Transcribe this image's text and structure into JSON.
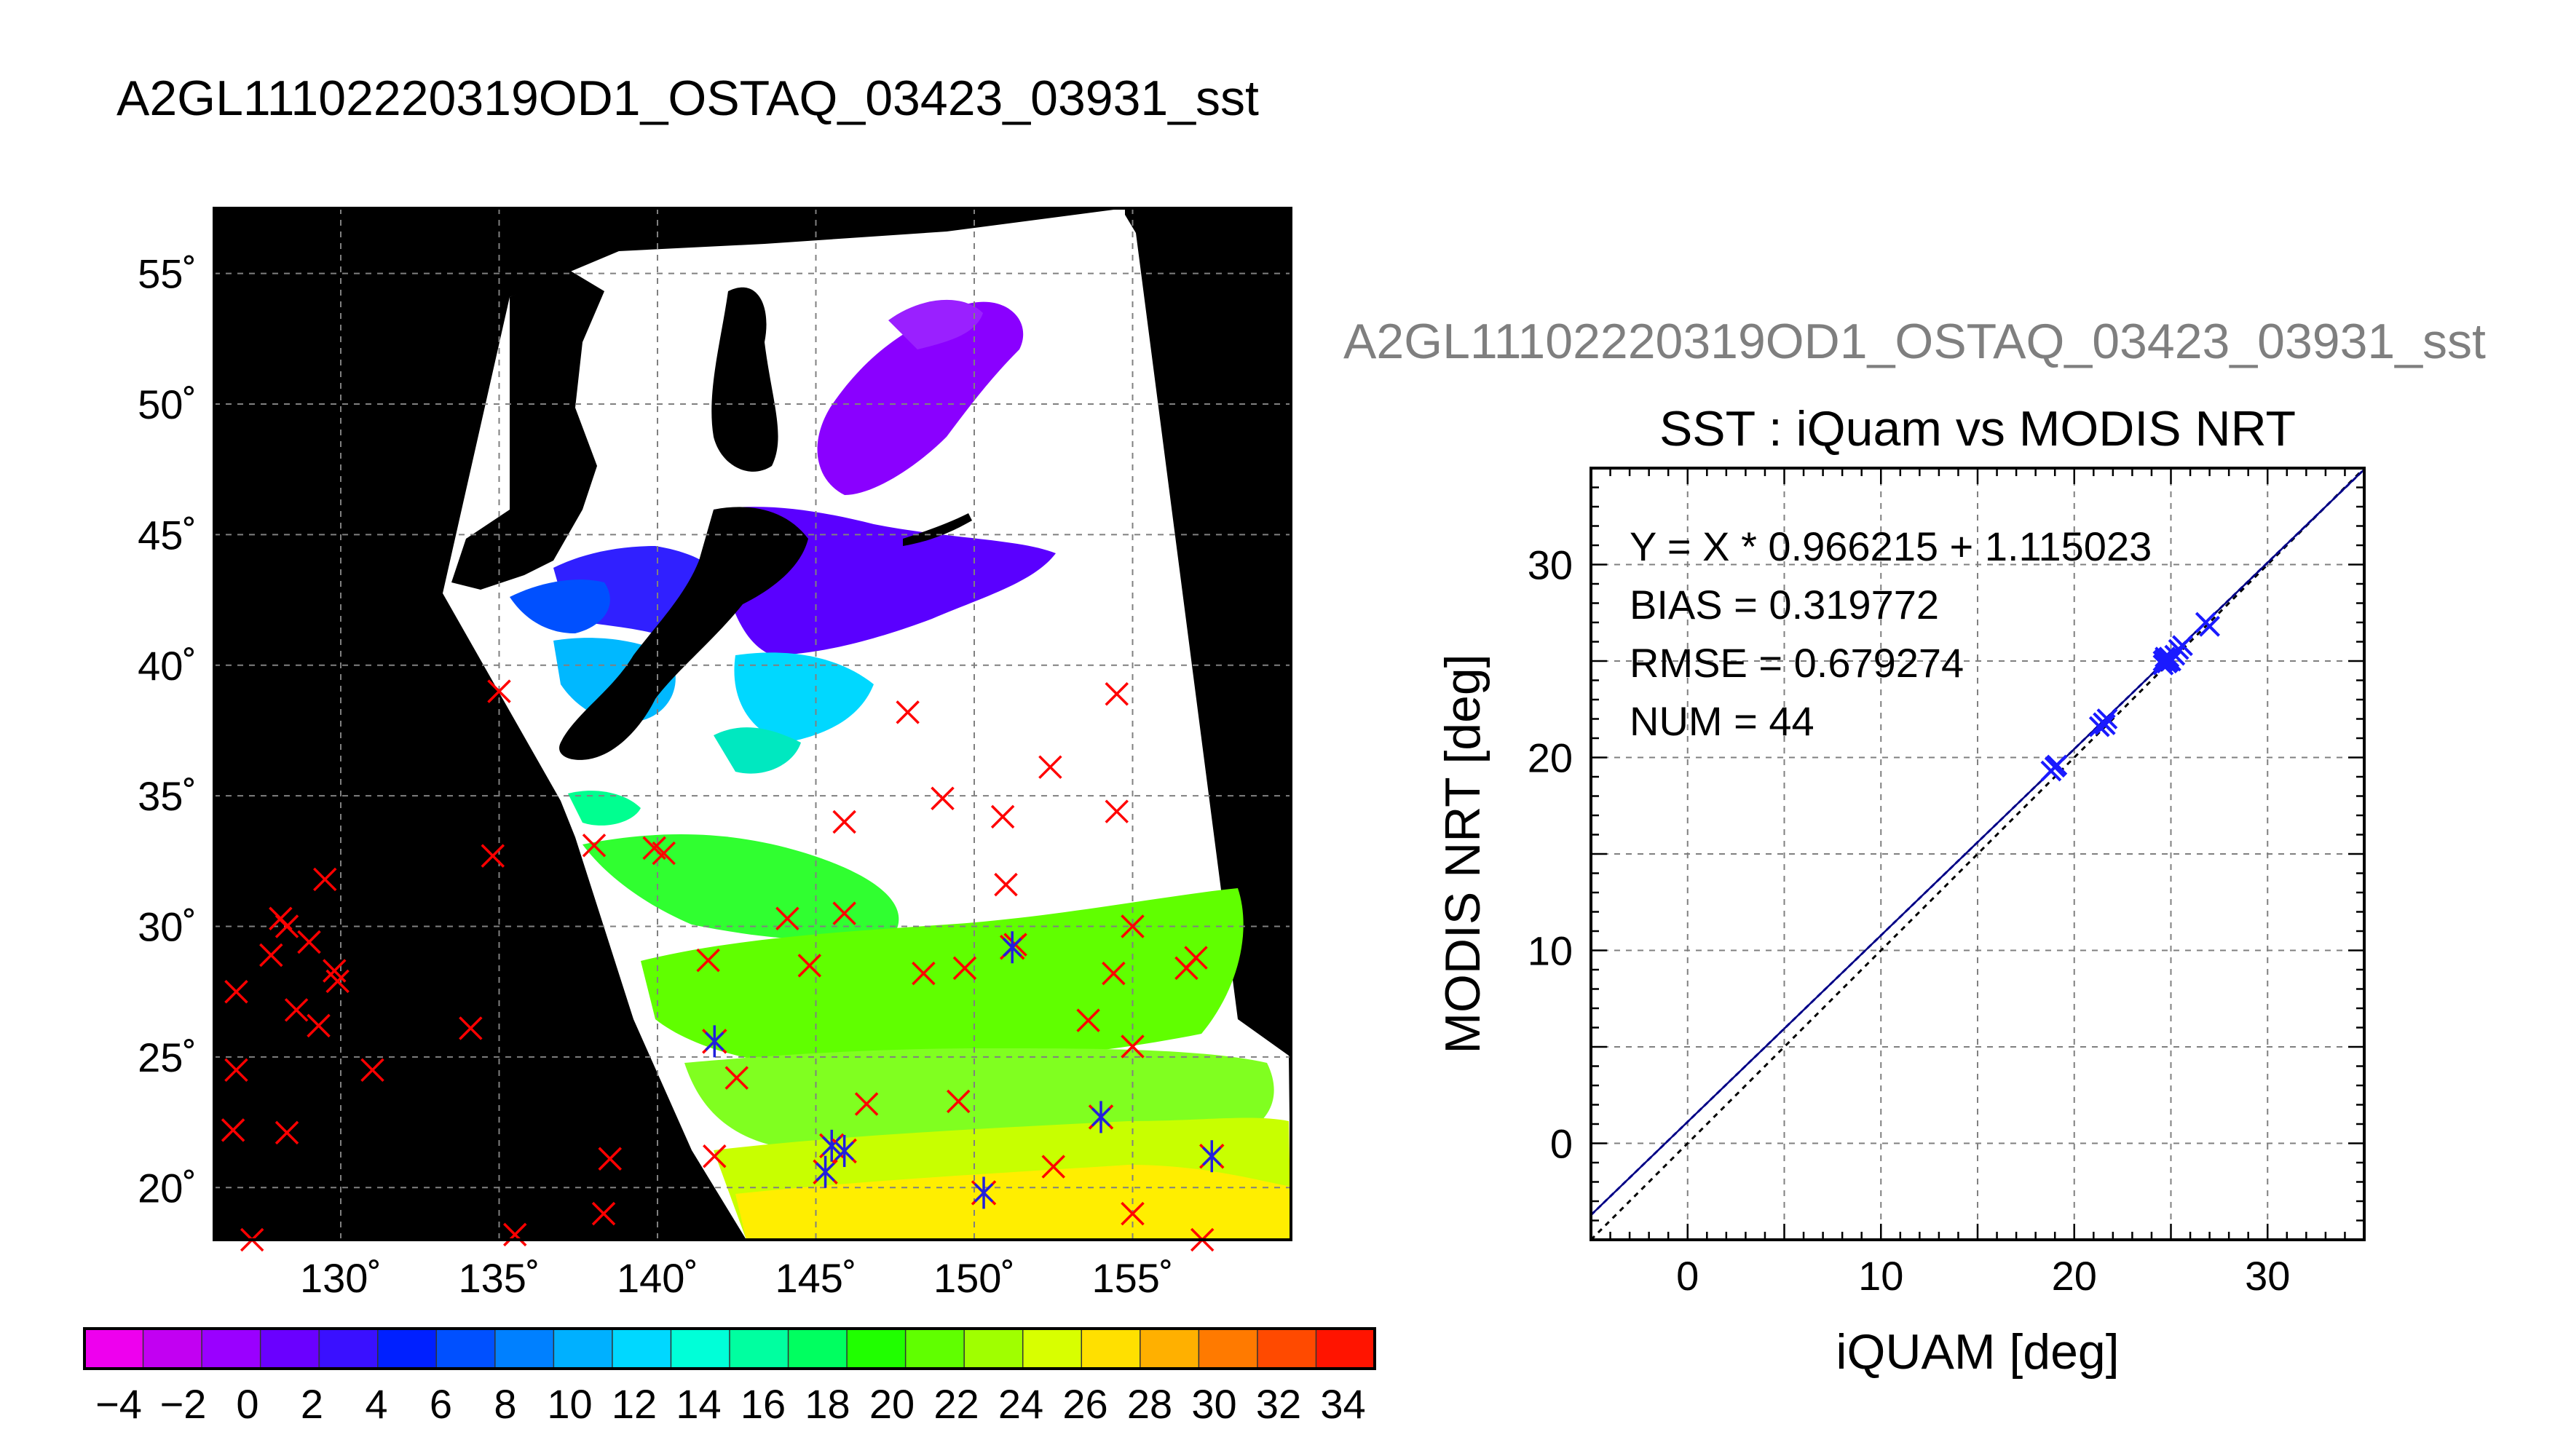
{
  "page_title": "A2GL11102220319OD1_OSTAQ_03423_03931_sst",
  "colorbar": {
    "tick_labels": [
      "−4",
      "−2",
      "0",
      "2",
      "4",
      "6",
      "8",
      "10",
      "12",
      "14",
      "16",
      "18",
      "20",
      "22",
      "24",
      "26",
      "28",
      "30",
      "32",
      "34"
    ],
    "range": [
      -5,
      35
    ],
    "colors": [
      "#ee00ee",
      "#c200f2",
      "#9a00ff",
      "#6a00ff",
      "#3a10ff",
      "#0020ff",
      "#0050ff",
      "#0080ff",
      "#00b0ff",
      "#00d8ff",
      "#00ffd8",
      "#00ffa0",
      "#00ff60",
      "#20ff00",
      "#60ff00",
      "#a0ff00",
      "#d8ff00",
      "#ffe000",
      "#ffb000",
      "#ff7a00",
      "#ff4a00",
      "#ff1400"
    ]
  },
  "map": {
    "lat_labels": [
      "55˚",
      "50˚",
      "45˚",
      "40˚",
      "35˚",
      "30˚",
      "25˚",
      "20˚"
    ],
    "lon_labels": [
      "130˚",
      "135˚",
      "140˚",
      "145˚",
      "150˚",
      "155˚"
    ]
  },
  "chart_data": [
    {
      "type": "scatter",
      "kind": "map",
      "xlim": [
        126,
        160
      ],
      "ylim": [
        18,
        57.5
      ],
      "x_ticks": [
        130,
        135,
        140,
        145,
        150,
        155
      ],
      "y_ticks": [
        20,
        25,
        30,
        35,
        40,
        45,
        50,
        55
      ],
      "grid": true,
      "series": [
        {
          "marker": "x",
          "color": "#ff0000",
          "points": [
            [
              126.7,
              27.5
            ],
            [
              126.7,
              24.5
            ],
            [
              126.6,
              22.2
            ],
            [
              127.2,
              18.0
            ],
            [
              127.8,
              28.9
            ],
            [
              128.1,
              30.3
            ],
            [
              128.3,
              30.0
            ],
            [
              128.6,
              26.8
            ],
            [
              129.0,
              29.4
            ],
            [
              129.3,
              26.2
            ],
            [
              129.5,
              31.8
            ],
            [
              129.8,
              28.3
            ],
            [
              129.9,
              27.9
            ],
            [
              131.0,
              24.5
            ],
            [
              128.3,
              22.1
            ],
            [
              134.1,
              26.1
            ],
            [
              134.8,
              32.7
            ],
            [
              135.0,
              39.0
            ],
            [
              135.5,
              18.2
            ],
            [
              138.0,
              33.1
            ],
            [
              138.3,
              19.0
            ],
            [
              138.5,
              21.1
            ],
            [
              139.9,
              33.0
            ],
            [
              140.2,
              32.8
            ],
            [
              141.6,
              28.7
            ],
            [
              141.8,
              21.2
            ],
            [
              142.5,
              24.2
            ],
            [
              144.1,
              30.3
            ],
            [
              144.8,
              28.5
            ],
            [
              145.9,
              34.0
            ],
            [
              145.9,
              30.5
            ],
            [
              146.6,
              23.2
            ],
            [
              147.9,
              38.2
            ],
            [
              148.4,
              28.2
            ],
            [
              149.0,
              34.9
            ],
            [
              149.5,
              23.3
            ],
            [
              149.7,
              28.4
            ],
            [
              150.9,
              34.2
            ],
            [
              151.0,
              31.6
            ],
            [
              151.3,
              29.3
            ],
            [
              152.4,
              36.1
            ],
            [
              152.5,
              20.8
            ],
            [
              153.6,
              26.4
            ],
            [
              154.5,
              38.9
            ],
            [
              154.5,
              34.4
            ],
            [
              154.4,
              28.2
            ],
            [
              155.0,
              25.4
            ],
            [
              155.0,
              30.0
            ],
            [
              155.0,
              19.0
            ],
            [
              156.7,
              28.4
            ],
            [
              157.0,
              28.8
            ],
            [
              157.2,
              18.0
            ]
          ]
        },
        {
          "marker": "asterisk",
          "color": "#2020dd",
          "points": [
            [
              141.8,
              25.6
            ],
            [
              145.5,
              21.6
            ],
            [
              145.3,
              20.6
            ],
            [
              145.9,
              21.4
            ],
            [
              150.3,
              19.8
            ],
            [
              151.2,
              29.2
            ],
            [
              154.0,
              22.7
            ],
            [
              157.5,
              21.2
            ]
          ]
        }
      ]
    },
    {
      "type": "scatter",
      "subtitle": "A2GL11102220319OD1_OSTAQ_03423_03931_sst",
      "title": "SST : iQuam vs MODIS NRT",
      "xlabel": "iQUAM [deg]",
      "ylabel": "MODIS NRT [deg]",
      "xlim": [
        -5,
        35
      ],
      "ylim": [
        -5,
        35
      ],
      "x_ticks": [
        0,
        10,
        20,
        30
      ],
      "y_ticks": [
        0,
        10,
        20,
        30
      ],
      "grid": true,
      "annotations": [
        "Y = X * 0.966215 + 1.115023",
        "BIAS = 0.319772",
        "RMSE = 0.679274",
        "NUM = 44"
      ],
      "fit": {
        "slope": 0.966215,
        "intercept": 1.115023
      },
      "points": [
        [
          19.0,
          19.5
        ],
        [
          18.8,
          19.3
        ],
        [
          19.1,
          19.6
        ],
        [
          21.5,
          21.8
        ],
        [
          21.3,
          21.6
        ],
        [
          21.7,
          22.0
        ],
        [
          21.6,
          21.7
        ],
        [
          24.6,
          25.0
        ],
        [
          24.7,
          25.1
        ],
        [
          24.8,
          24.9
        ],
        [
          24.9,
          25.2
        ],
        [
          25.0,
          25.0
        ],
        [
          24.6,
          24.8
        ],
        [
          25.2,
          25.3
        ],
        [
          24.7,
          25.2
        ],
        [
          25.6,
          25.8
        ],
        [
          25.4,
          25.6
        ],
        [
          26.8,
          27.0
        ],
        [
          27.0,
          26.8
        ],
        [
          24.9,
          25.0
        ]
      ]
    }
  ]
}
